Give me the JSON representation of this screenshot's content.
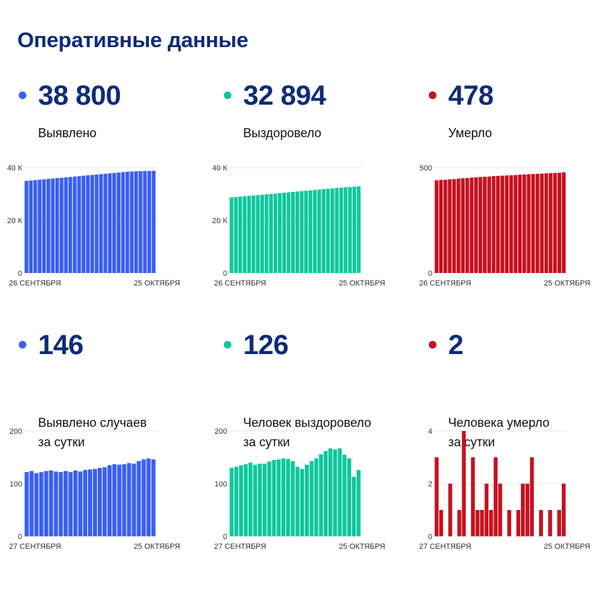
{
  "page": {
    "title": "Оперативные данные"
  },
  "stats": [
    {
      "value": "38 800",
      "caption": [
        "Выявлено"
      ],
      "color": "#3a5ff5"
    },
    {
      "value": "32 894",
      "caption": [
        "Выздоровело"
      ],
      "color": "#0fc79e"
    },
    {
      "value": "478",
      "caption": [
        "Умерло"
      ],
      "color": "#c8101e"
    },
    {
      "value": "146",
      "caption": [
        "Выявлено случаев",
        "за сутки"
      ],
      "color": "#3a5ff5"
    },
    {
      "value": "126",
      "caption": [
        "Человек выздоровело",
        "за сутки"
      ],
      "color": "#0fc79e"
    },
    {
      "value": "2",
      "caption": [
        "Человека умерло",
        "за сутки"
      ],
      "color": "#c8101e"
    }
  ],
  "chart_data": [
    {
      "type": "bar",
      "xlabel_start": "26 СЕНТЯБРЯ",
      "xlabel_end": "25 ОКТЯБРЯ",
      "yticks": [
        0,
        20000,
        40000
      ],
      "ytick_labels": [
        "0",
        "20 К",
        "40 К"
      ],
      "ylim": [
        0,
        40000
      ],
      "grid": true,
      "values": [
        35000,
        35150,
        35300,
        35450,
        35600,
        35750,
        35900,
        36050,
        36200,
        36350,
        36500,
        36650,
        36800,
        36950,
        37100,
        37250,
        37400,
        37550,
        37700,
        37850,
        38000,
        38150,
        38300,
        38450,
        38550,
        38650,
        38700,
        38750,
        38780,
        38800
      ]
    },
    {
      "type": "bar",
      "xlabel_start": "26 СЕНТЯБРЯ",
      "xlabel_end": "25 ОКТЯБРЯ",
      "yticks": [
        0,
        20000,
        40000
      ],
      "ytick_labels": [
        "0",
        "20 К",
        "40 К"
      ],
      "ylim": [
        0,
        40000
      ],
      "grid": true,
      "values": [
        28700,
        28850,
        29000,
        29150,
        29300,
        29450,
        29600,
        29750,
        29900,
        30050,
        30200,
        30350,
        30500,
        30650,
        30800,
        30950,
        31100,
        31250,
        31400,
        31550,
        31700,
        31850,
        32000,
        32150,
        32300,
        32450,
        32550,
        32650,
        32770,
        32894
      ]
    },
    {
      "type": "bar",
      "xlabel_start": "26 СЕНТЯБРЯ",
      "xlabel_end": "25 ОКТЯБРЯ",
      "yticks": [
        0,
        500
      ],
      "ytick_labels": [
        "0",
        "500"
      ],
      "ylim": [
        0,
        500
      ],
      "grid": true,
      "values": [
        440,
        442,
        443,
        445,
        446,
        448,
        450,
        451,
        453,
        454,
        456,
        457,
        458,
        460,
        461,
        462,
        463,
        464,
        465,
        467,
        468,
        469,
        470,
        471,
        472,
        473,
        474,
        475,
        476,
        478
      ]
    },
    {
      "type": "bar",
      "xlabel_start": "27 СЕНТЯБРЯ",
      "xlabel_end": "25 ОКТЯБРЯ",
      "yticks": [
        0,
        100,
        200
      ],
      "ytick_labels": [
        "0",
        "100",
        "200"
      ],
      "ylim": [
        0,
        200
      ],
      "grid": true,
      "values": [
        122,
        124,
        120,
        122,
        124,
        125,
        123,
        122,
        124,
        122,
        125,
        123,
        126,
        127,
        128,
        130,
        131,
        135,
        137,
        136,
        137,
        139,
        138,
        143,
        146,
        148,
        146
      ]
    },
    {
      "type": "bar",
      "xlabel_start": "27 СЕНТЯБРЯ",
      "xlabel_end": "25 ОКТЯБРЯ",
      "yticks": [
        0,
        100,
        200
      ],
      "ytick_labels": [
        "0",
        "100",
        "200"
      ],
      "ylim": [
        0,
        200
      ],
      "grid": true,
      "values": [
        130,
        132,
        135,
        137,
        140,
        136,
        138,
        138,
        142,
        145,
        146,
        148,
        147,
        143,
        132,
        128,
        136,
        143,
        148,
        156,
        162,
        167,
        165,
        167,
        155,
        148,
        113,
        126
      ]
    },
    {
      "type": "bar",
      "xlabel_start": "27 СЕНТЯБРЯ",
      "xlabel_end": "25 ОКТЯБРЯ",
      "yticks": [
        0,
        2,
        4
      ],
      "ytick_labels": [
        "0",
        "2",
        "4"
      ],
      "ylim": [
        0,
        4
      ],
      "grid": true,
      "values": [
        3,
        1,
        0,
        2,
        0,
        1,
        4,
        0,
        3,
        1,
        1,
        2,
        1,
        3,
        2,
        0,
        1,
        0,
        1,
        2,
        2,
        3,
        0,
        1,
        0,
        1,
        0,
        1,
        2
      ]
    }
  ]
}
